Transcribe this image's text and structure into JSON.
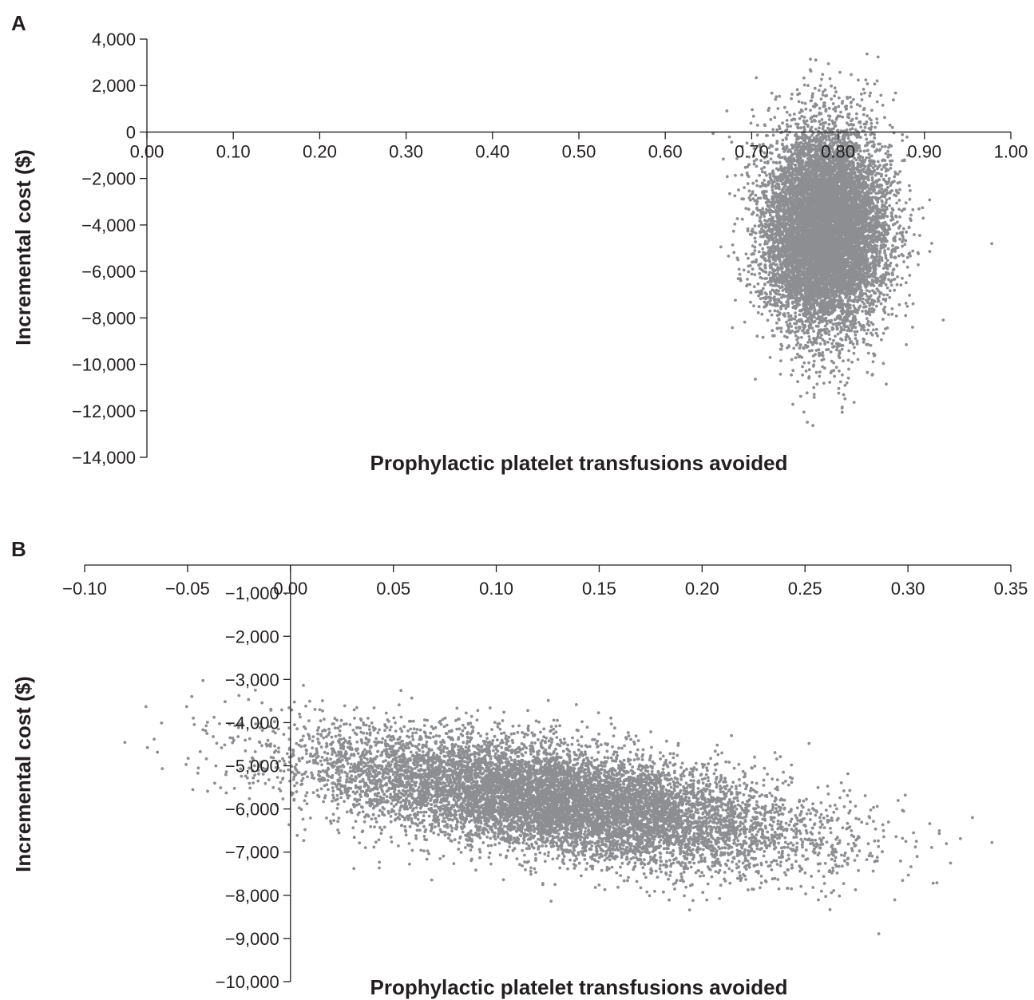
{
  "colors": {
    "point": "#8c8e91",
    "axis": "#231f20",
    "background": "#ffffff"
  },
  "chart_data": [
    {
      "panel": "A",
      "type": "scatter",
      "xlabel": "Prophylactic platelet transfusions avoided",
      "ylabel": "Incremental cost ($)",
      "xlim": [
        0,
        1
      ],
      "ylim": [
        -14000,
        4000
      ],
      "x_ticks": [
        "0.00",
        "0.10",
        "0.20",
        "0.30",
        "0.40",
        "0.50",
        "0.60",
        "0.70",
        "0.80",
        "0.90",
        "1.00"
      ],
      "y_ticks": [
        "4,000",
        "2,000",
        "0",
        "−2,000",
        "−4,000",
        "−6,000",
        "−8,000",
        "−10,000",
        "−12,000",
        "−14,000"
      ],
      "grid": false,
      "cloud": {
        "x_mean": 0.785,
        "x_sd": 0.035,
        "y_mean": -4200,
        "y_sd": 2200,
        "correlation": 0.0,
        "n": 10000
      }
    },
    {
      "panel": "B",
      "type": "scatter",
      "xlabel": "Prophylactic platelet transfusions avoided",
      "ylabel": "Incremental cost ($)",
      "xlim": [
        -0.1,
        0.35
      ],
      "ylim": [
        -10000,
        -350
      ],
      "x_ticks": [
        "−0.10",
        "−0.05",
        "0.00",
        "0.05",
        "0.10",
        "0.15",
        "0.20",
        "0.25",
        "0.30",
        "0.35"
      ],
      "y_ticks": [
        "−1,000",
        "−2,000",
        "−3,000",
        "−4,000",
        "−5,000",
        "−6,000",
        "−7,000",
        "−8,000",
        "−9,000",
        "−10,000"
      ],
      "grid": false,
      "cloud": {
        "x_mean": 0.13,
        "x_sd": 0.06,
        "y_mean": -5800,
        "y_sd": 750,
        "correlation": -0.55,
        "n": 10000
      }
    }
  ]
}
